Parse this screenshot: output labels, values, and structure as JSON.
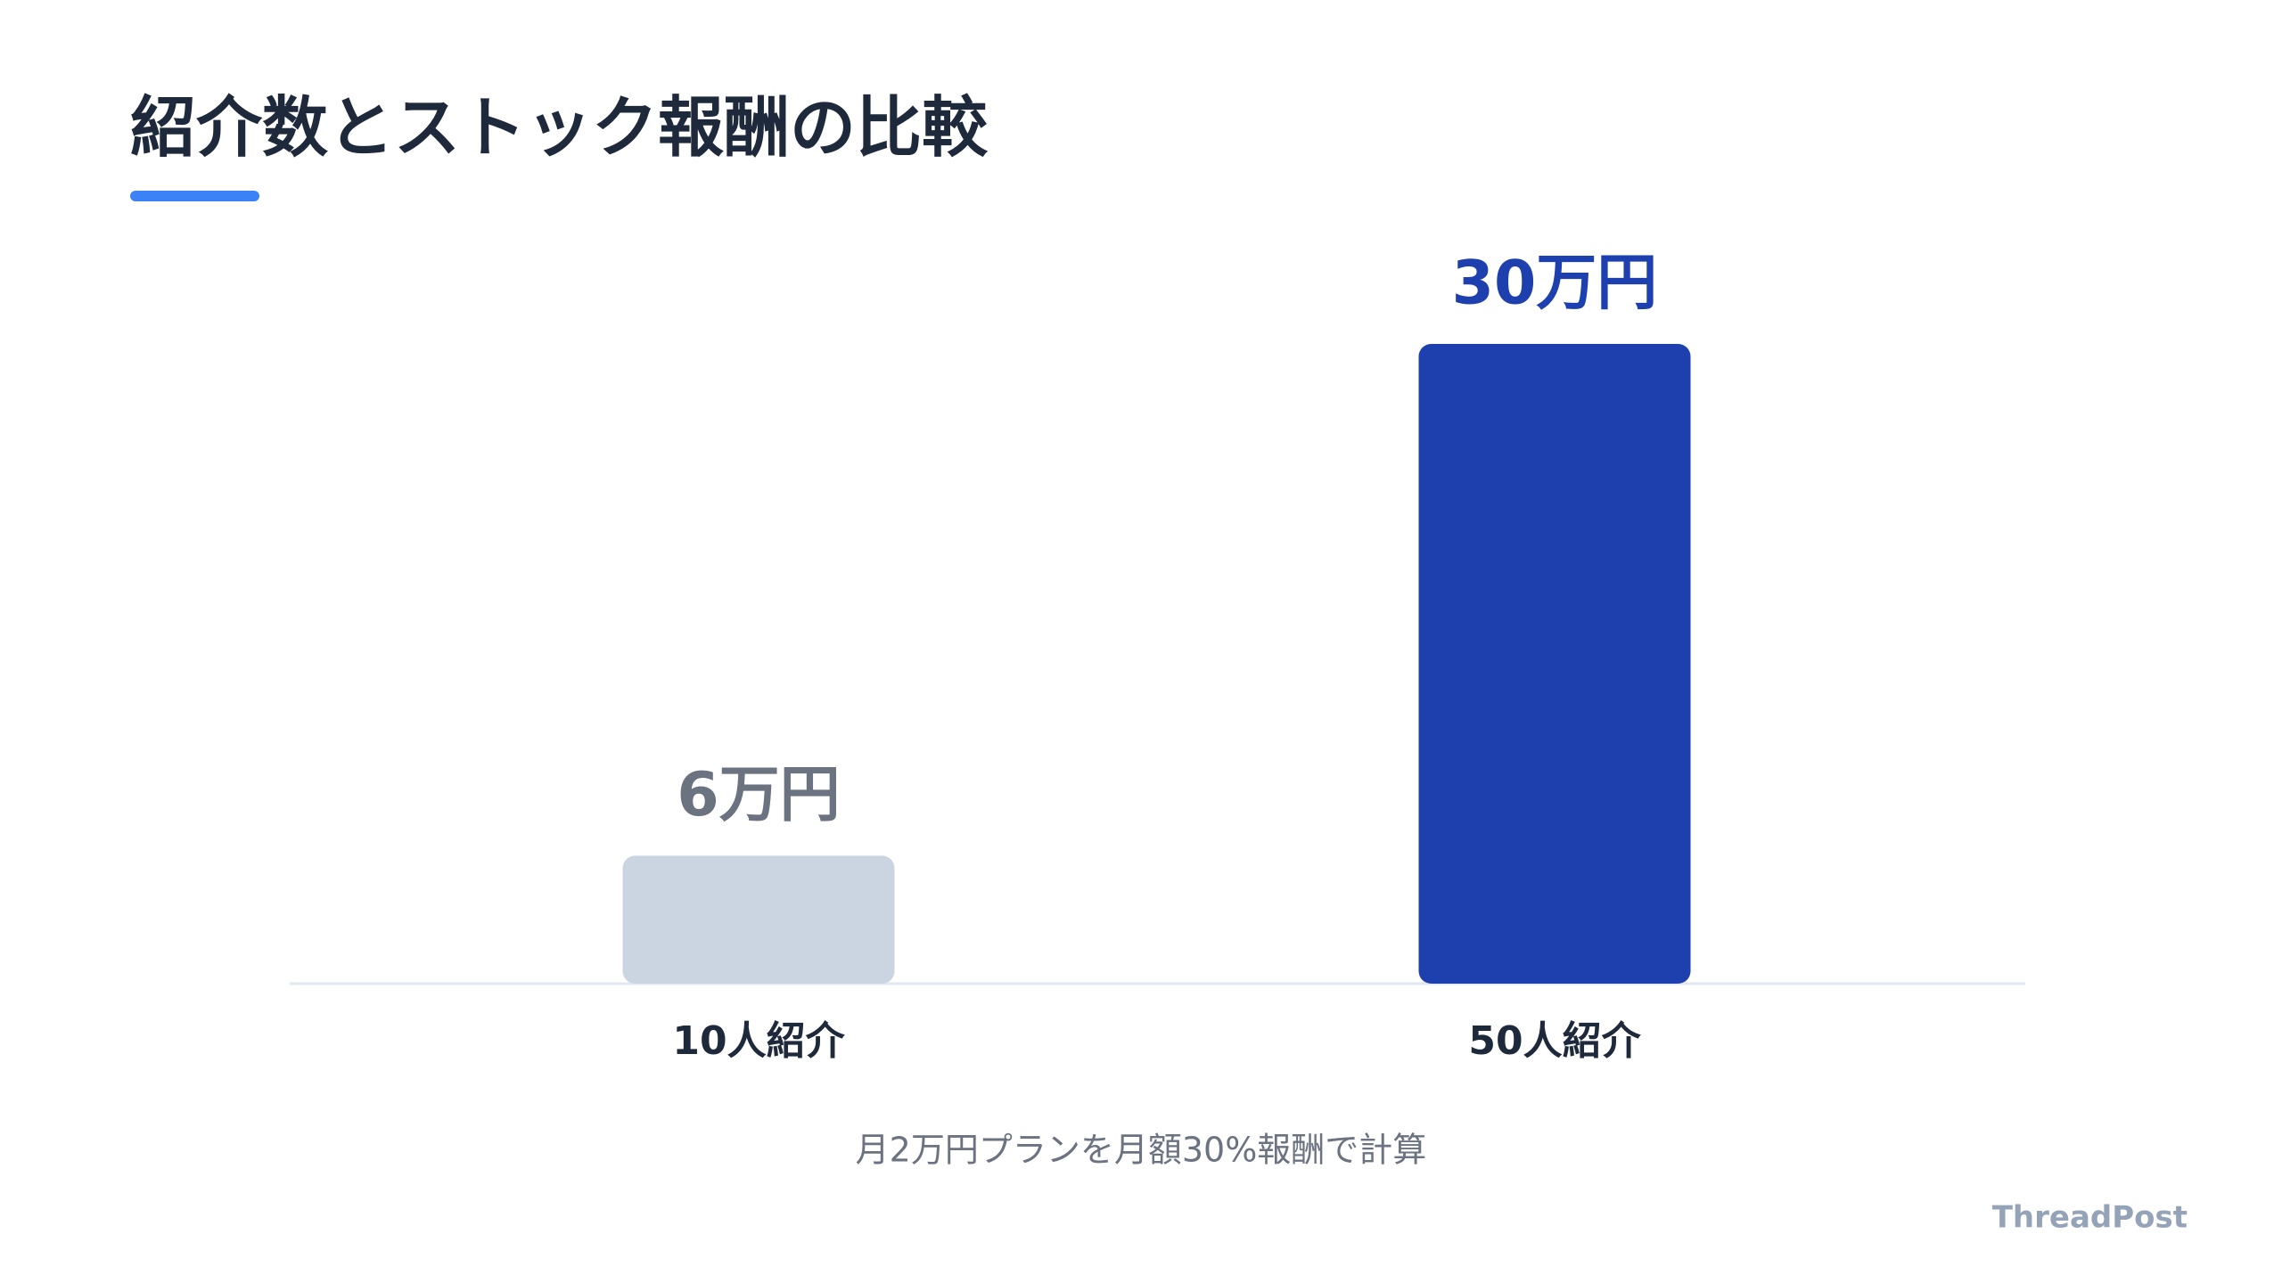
{
  "chart_data": {
    "type": "bar",
    "title": "紹介数とストック報酬の比較",
    "categories": [
      "10人紹介",
      "50人紹介"
    ],
    "values": [
      6,
      30
    ],
    "value_labels": [
      "6万円",
      "30万円"
    ],
    "colors": [
      "#cbd5e1",
      "#1e40af"
    ],
    "label_colors": [
      "#6b7280",
      "#1e40af"
    ],
    "note": "月2万円プランを月額30%報酬で計算",
    "brand": "ThreadPost"
  }
}
